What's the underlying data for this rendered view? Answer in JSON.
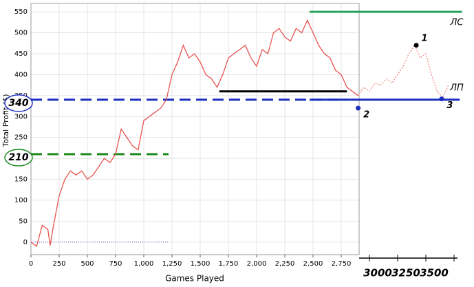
{
  "chart_data": {
    "type": "line",
    "x_label": "Games Played",
    "y_label": "Total Profit ($)",
    "xlim": [
      0,
      3750
    ],
    "ylim": [
      -30,
      570
    ],
    "xticks": [
      0,
      250,
      500,
      750,
      {
        "value": 1000,
        "label": "1,000"
      },
      {
        "value": 1250,
        "label": "1,250"
      },
      {
        "value": 1500,
        "label": "1,500"
      },
      {
        "value": 1750,
        "label": "1,750"
      },
      {
        "value": 2000,
        "label": "2,000"
      },
      {
        "value": 2250,
        "label": "2,250"
      },
      {
        "value": 2500,
        "label": "2,500"
      },
      {
        "value": 2750,
        "label": "2,750"
      }
    ],
    "extended_xticks": [
      3000,
      3250,
      3500
    ],
    "yticks": [
      0,
      50,
      100,
      150,
      200,
      250,
      300,
      350,
      400,
      450,
      500,
      550
    ],
    "grid": true,
    "series": [
      {
        "color": "#e8534f",
        "style": "solid",
        "x": [
          0,
          50,
          100,
          150,
          170,
          200,
          250,
          300,
          350,
          400,
          450,
          500,
          550,
          600,
          650,
          700,
          750,
          800,
          850,
          900,
          950,
          1000,
          1050,
          1100,
          1150,
          1200,
          1250,
          1300,
          1350,
          1400,
          1450,
          1500,
          1550,
          1600,
          1650,
          1700,
          1750,
          1800,
          1850,
          1900,
          1950,
          2000,
          2050,
          2100,
          2150,
          2200,
          2250,
          2300,
          2350,
          2400,
          2450,
          2500,
          2550,
          2600,
          2650,
          2700,
          2750,
          2800,
          2850,
          2900
        ],
        "values": [
          0,
          -10,
          40,
          30,
          -8,
          40,
          110,
          150,
          170,
          160,
          170,
          150,
          160,
          180,
          200,
          190,
          210,
          270,
          250,
          230,
          220,
          290,
          300,
          310,
          320,
          340,
          400,
          430,
          470,
          440,
          450,
          430,
          400,
          390,
          370,
          400,
          440,
          450,
          460,
          470,
          440,
          420,
          460,
          450,
          500,
          510,
          490,
          480,
          510,
          500,
          530,
          500,
          470,
          450,
          440,
          410,
          400,
          370,
          360,
          350
        ]
      },
      {
        "color": "#ee8c89",
        "style": "dotted",
        "x": [
          2900,
          2950,
          3000,
          3050,
          3100,
          3150,
          3200,
          3250,
          3300,
          3350,
          3400,
          3450,
          3500,
          3550,
          3600,
          3650,
          3700
        ],
        "values": [
          350,
          370,
          360,
          380,
          375,
          390,
          380,
          400,
          420,
          450,
          470,
          440,
          450,
          400,
          360,
          345,
          375
        ]
      }
    ],
    "reference_lines": [
      {
        "value": 550,
        "from": 2470,
        "to": 3820,
        "color": "#23a05a",
        "style": "solid",
        "label": "ЛС"
      },
      {
        "value": 360,
        "from": 1670,
        "to": 2800,
        "color": "#000000",
        "style": "solid"
      },
      {
        "value": 340,
        "from": 0,
        "to": 2800,
        "color": "#1a2fbf",
        "style": "dashed",
        "label": "340"
      },
      {
        "value": 340,
        "from": 2470,
        "to": 3800,
        "color": "#1a2fbf",
        "style": "solid",
        "label": "ЛП"
      },
      {
        "value": 210,
        "from": 0,
        "to": 1220,
        "color": "#1e8a1e",
        "style": "dashed",
        "label": "210"
      },
      {
        "value": 0,
        "from": 0,
        "to": 1220,
        "color": "#4a4ad0",
        "style": "dotted"
      }
    ],
    "points": [
      {
        "label": "1",
        "x": 3415,
        "y": 470,
        "color": "#000000"
      },
      {
        "label": "2",
        "x": 2900,
        "y": 320,
        "color": "#1a2fbf"
      },
      {
        "label": "3",
        "x": 3640,
        "y": 342,
        "color": "#1a2fbf"
      }
    ]
  }
}
